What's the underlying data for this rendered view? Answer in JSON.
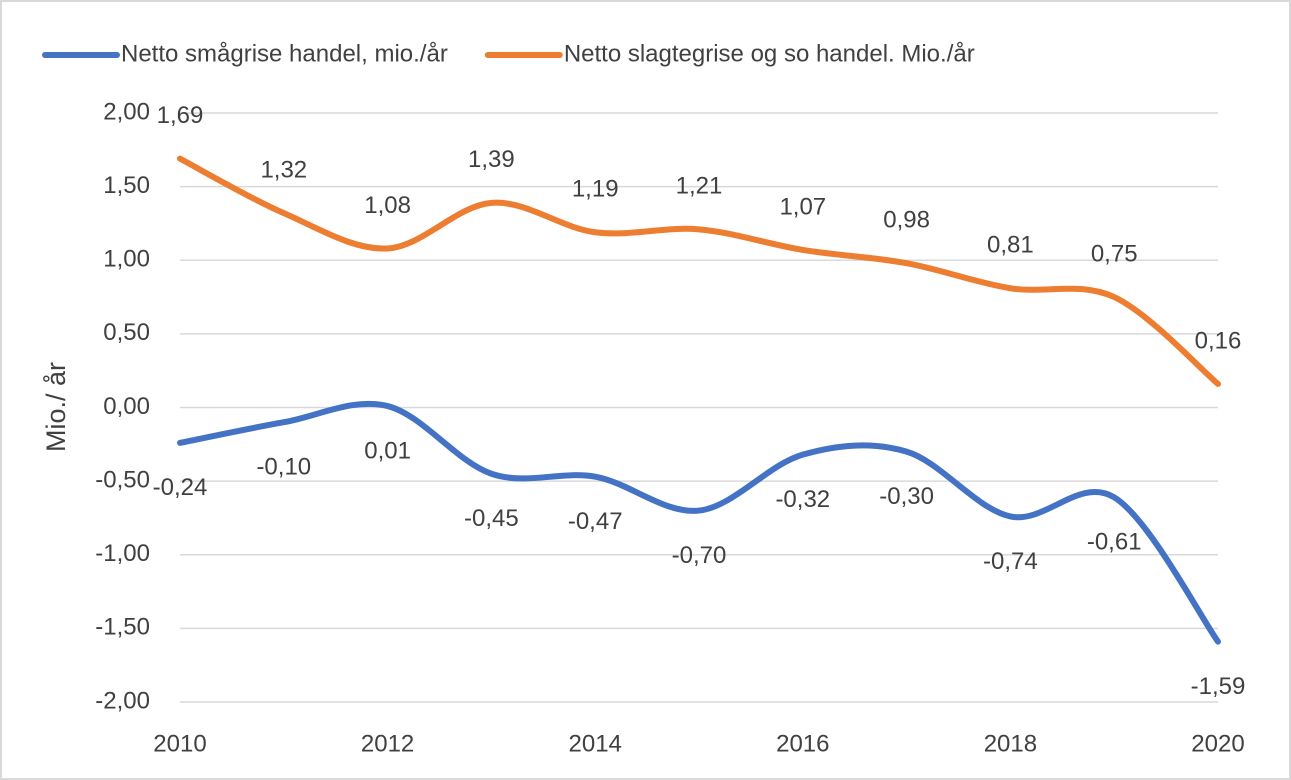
{
  "chart_data": {
    "type": "line",
    "y_label": "Mio./ år",
    "x": [
      2010,
      2011,
      2012,
      2013,
      2014,
      2015,
      2016,
      2017,
      2018,
      2019,
      2020
    ],
    "xlim": [
      2010,
      2020
    ],
    "xticks": [
      2010,
      2012,
      2014,
      2016,
      2018,
      2020
    ],
    "ylim": [
      -2,
      2
    ],
    "yticks": [
      {
        "value": -2,
        "label": "-2,00"
      },
      {
        "value": -1.5,
        "label": "-1,50"
      },
      {
        "value": -1,
        "label": "-1,00"
      },
      {
        "value": -0.5,
        "label": "-0,50"
      },
      {
        "value": 0,
        "label": "0,00"
      },
      {
        "value": 0.5,
        "label": "0,50"
      },
      {
        "value": 1,
        "label": "1,00"
      },
      {
        "value": 1.5,
        "label": "1,50"
      },
      {
        "value": 2,
        "label": "2,00"
      }
    ],
    "grid": true,
    "legend": "top",
    "series": [
      {
        "name": "Netto smågrise handel, mio./år",
        "color": "#4472c4",
        "values": [
          -0.24,
          -0.1,
          0.01,
          -0.45,
          -0.47,
          -0.7,
          -0.32,
          -0.3,
          -0.74,
          -0.61,
          -1.59
        ],
        "value_labels": [
          "-0,24",
          "-0,10",
          "0,01",
          "-0,45",
          "-0,47",
          "-0,70",
          "-0,32",
          "-0,30",
          "-0,74",
          "-0,61",
          "-1,59"
        ]
      },
      {
        "name": "Netto slagtegrise og so handel. Mio./år",
        "color": "#ed7d31",
        "values": [
          1.69,
          1.32,
          1.08,
          1.39,
          1.19,
          1.21,
          1.07,
          0.98,
          0.81,
          0.75,
          0.16
        ],
        "value_labels": [
          "1,69",
          "1,32",
          "1,08",
          "1,39",
          "1,19",
          "1,21",
          "1,07",
          "0,98",
          "0,81",
          "0,75",
          "0,16"
        ]
      }
    ]
  }
}
